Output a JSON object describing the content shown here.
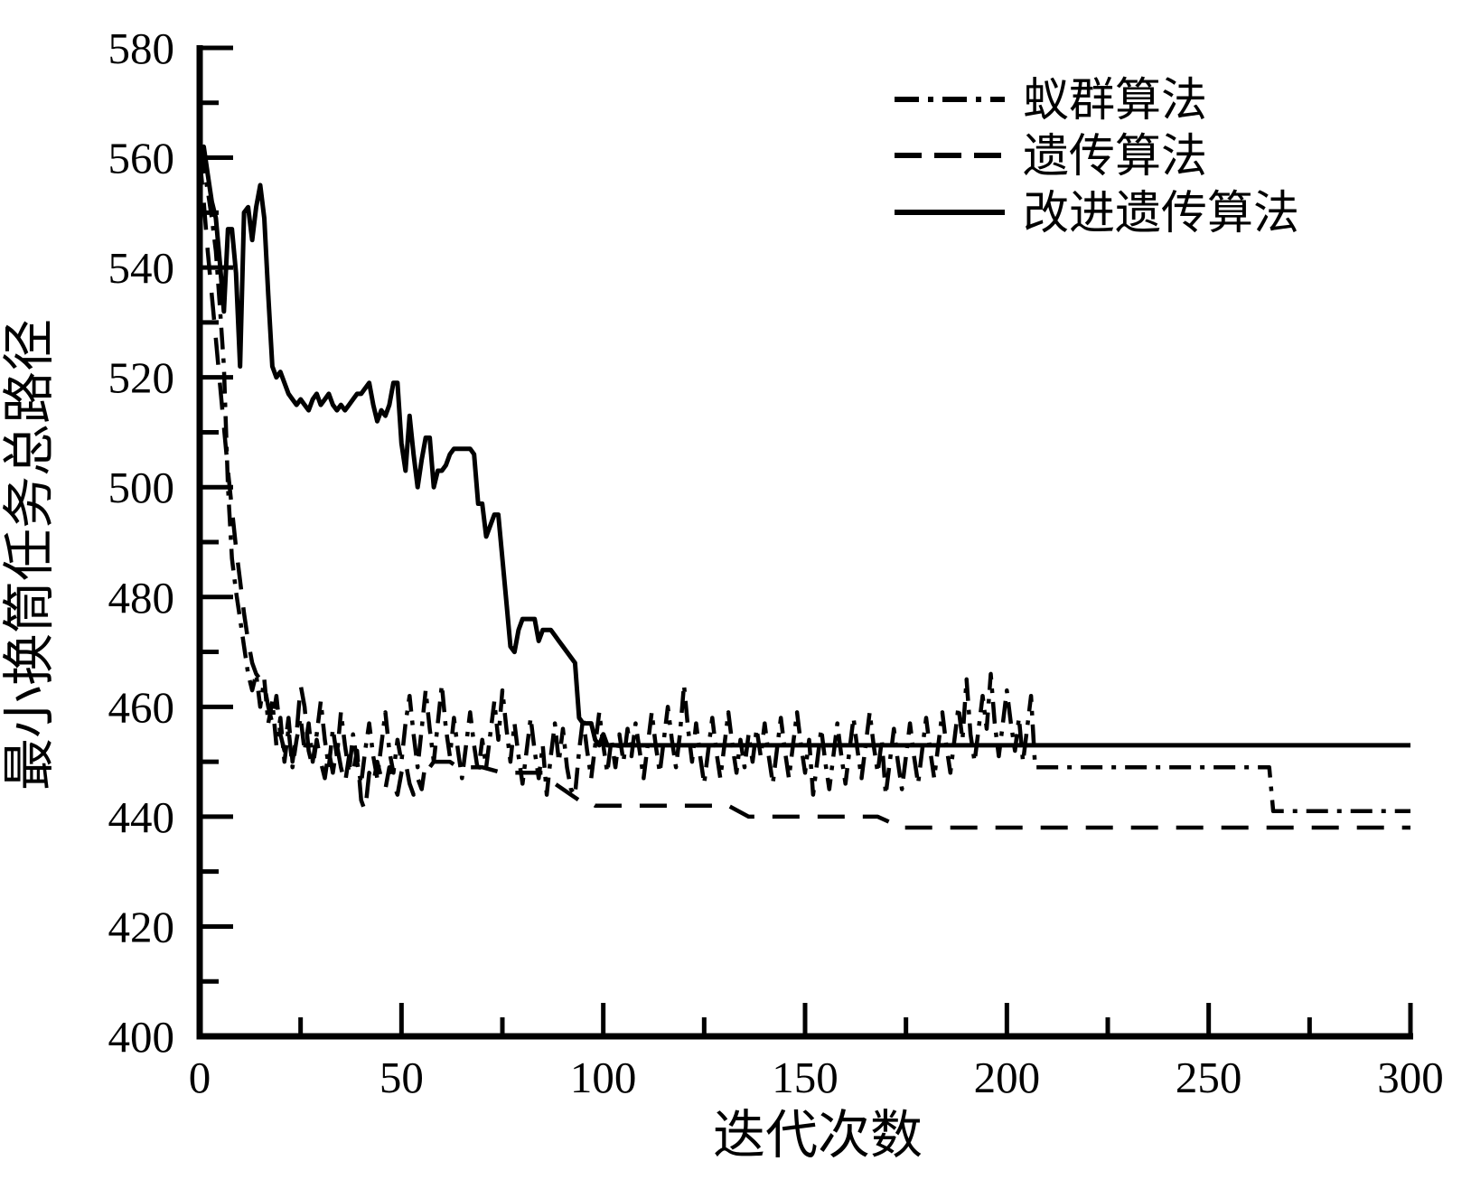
{
  "figure": {
    "background": "#ffffff",
    "ink": "#000000"
  },
  "chart_data": {
    "type": "line",
    "title": "",
    "xlabel": "迭代次数",
    "ylabel": "最小换筒任务总路径",
    "xlim": [
      0,
      300
    ],
    "ylim": [
      400,
      580
    ],
    "grid": false,
    "legend_position": "top-right",
    "x_major_ticks": [
      0,
      50,
      100,
      150,
      200,
      250,
      300
    ],
    "x_minor_ticks": [
      25,
      75,
      125,
      175,
      225,
      275
    ],
    "x_tick_labels": [
      "0",
      "50",
      "100",
      "150",
      "200",
      "250",
      "300"
    ],
    "y_major_ticks": [
      400,
      420,
      440,
      460,
      480,
      500,
      520,
      540,
      560,
      580
    ],
    "y_minor_ticks": [
      410,
      430,
      450,
      470,
      490,
      510,
      530,
      550,
      570
    ],
    "y_tick_labels": [
      "400",
      "420",
      "440",
      "460",
      "480",
      "500",
      "520",
      "540",
      "560",
      "580"
    ],
    "series": [
      {
        "name": "蚁群算法",
        "line_style": "dash-dot",
        "color": "#000000",
        "x": [
          0,
          1,
          2,
          3,
          4,
          5,
          6,
          7,
          8,
          9,
          10,
          11,
          12,
          13,
          14,
          15,
          16,
          17,
          18,
          19,
          20,
          21,
          22,
          23,
          24,
          25,
          26,
          27,
          28,
          29,
          30,
          31,
          32,
          33,
          34,
          35,
          36,
          37,
          38,
          39,
          40,
          41,
          42,
          43,
          44,
          45,
          46,
          47,
          48,
          49,
          50,
          51,
          52,
          53,
          54,
          55,
          56,
          57,
          58,
          59,
          60,
          61,
          62,
          63,
          64,
          65,
          66,
          67,
          68,
          69,
          70,
          71,
          72,
          73,
          74,
          75,
          76,
          77,
          78,
          79,
          80,
          81,
          82,
          83,
          84,
          85,
          86,
          87,
          88,
          89,
          90,
          91,
          92,
          93,
          94,
          95,
          96,
          97,
          98,
          99,
          100,
          101,
          102,
          103,
          104,
          105,
          106,
          107,
          108,
          109,
          110,
          111,
          112,
          113,
          114,
          115,
          116,
          117,
          118,
          119,
          120,
          121,
          122,
          123,
          124,
          125,
          126,
          127,
          128,
          129,
          130,
          131,
          132,
          133,
          134,
          135,
          136,
          137,
          138,
          139,
          140,
          141,
          142,
          143,
          144,
          145,
          146,
          147,
          148,
          149,
          150,
          151,
          152,
          153,
          154,
          155,
          156,
          157,
          158,
          159,
          160,
          161,
          162,
          163,
          164,
          165,
          166,
          167,
          168,
          169,
          170,
          171,
          172,
          173,
          174,
          175,
          176,
          177,
          178,
          179,
          180,
          181,
          182,
          183,
          184,
          185,
          186,
          187,
          188,
          189,
          190,
          191,
          192,
          193,
          194,
          195,
          196,
          197,
          198,
          199,
          200,
          201,
          202,
          203,
          204,
          205,
          206,
          207,
          208,
          265,
          266,
          300
        ],
        "y": [
          561,
          558,
          554,
          549,
          543,
          533,
          522,
          500,
          487,
          481,
          476,
          471,
          466,
          463,
          466,
          460,
          465,
          457,
          461,
          453,
          458,
          450,
          456,
          449,
          454,
          458,
          452,
          457,
          450,
          455,
          461,
          454,
          449,
          456,
          451,
          459,
          453,
          448,
          455,
          450,
          446,
          452,
          457,
          451,
          447,
          453,
          459,
          452,
          448,
          454,
          450,
          457,
          462,
          455,
          449,
          456,
          463,
          456,
          450,
          457,
          464,
          456,
          451,
          458,
          452,
          447,
          453,
          459,
          453,
          448,
          454,
          449,
          455,
          461,
          454,
          463,
          456,
          450,
          457,
          451,
          446,
          452,
          458,
          452,
          447,
          453,
          444,
          451,
          457,
          450,
          456,
          449,
          445,
          444,
          452,
          458,
          452,
          447,
          453,
          459,
          453,
          448,
          454,
          449,
          455,
          450,
          456,
          451,
          457,
          452,
          447,
          453,
          459,
          453,
          448,
          454,
          460,
          454,
          449,
          455,
          464,
          456,
          450,
          457,
          451,
          446,
          452,
          458,
          452,
          447,
          453,
          459,
          453,
          448,
          454,
          449,
          455,
          450,
          456,
          451,
          457,
          451,
          446,
          452,
          458,
          452,
          447,
          453,
          459,
          453,
          448,
          454,
          444,
          450,
          456,
          450,
          445,
          451,
          457,
          451,
          446,
          452,
          458,
          452,
          447,
          453,
          459,
          453,
          448,
          454,
          444,
          450,
          456,
          450,
          445,
          451,
          457,
          451,
          446,
          452,
          458,
          452,
          447,
          453,
          459,
          453,
          448,
          454,
          460,
          454,
          465,
          455,
          450,
          456,
          462,
          456,
          466,
          457,
          451,
          457,
          463,
          457,
          452,
          458,
          450,
          456,
          462,
          449,
          449,
          449,
          441,
          441
        ]
      },
      {
        "name": "遗传算法",
        "line_style": "dashed",
        "color": "#000000",
        "x": [
          0,
          1,
          2,
          3,
          4,
          5,
          6,
          7,
          8,
          9,
          10,
          11,
          12,
          13,
          14,
          15,
          16,
          17,
          18,
          19,
          20,
          21,
          22,
          23,
          24,
          25,
          26,
          27,
          28,
          29,
          30,
          31,
          32,
          33,
          34,
          35,
          36,
          37,
          38,
          39,
          40,
          41,
          42,
          43,
          44,
          45,
          46,
          47,
          48,
          49,
          50,
          51,
          52,
          53,
          54,
          55,
          56,
          57,
          58,
          59,
          60,
          62,
          64,
          66,
          70,
          75,
          80,
          85,
          86,
          88,
          90,
          92,
          94,
          96,
          98,
          100,
          131,
          136,
          168,
          171,
          173,
          300
        ],
        "y": [
          560,
          552,
          543,
          535,
          527,
          519,
          511,
          503,
          496,
          489,
          483,
          477,
          472,
          468,
          466,
          465,
          464,
          460,
          457,
          462,
          455,
          452,
          458,
          450,
          455,
          464,
          460,
          452,
          449,
          454,
          450,
          447,
          452,
          448,
          453,
          449,
          446,
          451,
          448,
          452,
          443,
          441,
          448,
          446,
          450,
          447,
          445,
          449,
          446,
          444,
          448,
          450,
          446,
          444,
          447,
          445,
          450,
          449,
          450,
          450,
          450,
          450,
          449,
          449,
          449,
          448,
          448,
          448,
          447,
          446,
          445,
          444,
          443,
          443,
          442,
          442,
          442,
          440,
          440,
          439,
          438,
          438
        ]
      },
      {
        "name": "改进遗传算法",
        "line_style": "solid",
        "color": "#000000",
        "x": [
          0,
          1,
          2,
          3,
          4,
          5,
          6,
          7,
          8,
          9,
          10,
          11,
          12,
          13,
          14,
          15,
          16,
          17,
          18,
          19,
          20,
          21,
          22,
          23,
          24,
          25,
          26,
          27,
          28,
          29,
          30,
          31,
          32,
          33,
          34,
          35,
          36,
          37,
          38,
          39,
          40,
          41,
          42,
          43,
          44,
          45,
          46,
          47,
          48,
          49,
          50,
          51,
          52,
          53,
          54,
          55,
          56,
          57,
          58,
          59,
          60,
          61,
          62,
          63,
          64,
          65,
          66,
          67,
          68,
          69,
          70,
          71,
          72,
          73,
          74,
          75,
          76,
          77,
          78,
          79,
          80,
          81,
          82,
          83,
          84,
          85,
          86,
          87,
          88,
          89,
          90,
          91,
          92,
          93,
          94,
          95,
          96,
          97,
          98,
          99,
          100,
          101,
          102,
          300
        ],
        "y": [
          559,
          562,
          557,
          552,
          549,
          541,
          532,
          547,
          547,
          539,
          522,
          550,
          551,
          545,
          551,
          555,
          549,
          535,
          522,
          520,
          521,
          519,
          517,
          516,
          515,
          516,
          515,
          514,
          516,
          517,
          515,
          516,
          517,
          515,
          514,
          515,
          514,
          515,
          516,
          517,
          517,
          518,
          519,
          515,
          512,
          514,
          513,
          515,
          519,
          519,
          508,
          503,
          513,
          506,
          500,
          505,
          509,
          509,
          500,
          503,
          503,
          504,
          506,
          507,
          507,
          507,
          507,
          507,
          506,
          497,
          497,
          491,
          493,
          495,
          495,
          487,
          479,
          471,
          470,
          474,
          476,
          476,
          476,
          476,
          472,
          474,
          474,
          474,
          473,
          472,
          471,
          470,
          469,
          468,
          458,
          457,
          457,
          457,
          454,
          453,
          455,
          453,
          453,
          453
        ]
      }
    ]
  }
}
